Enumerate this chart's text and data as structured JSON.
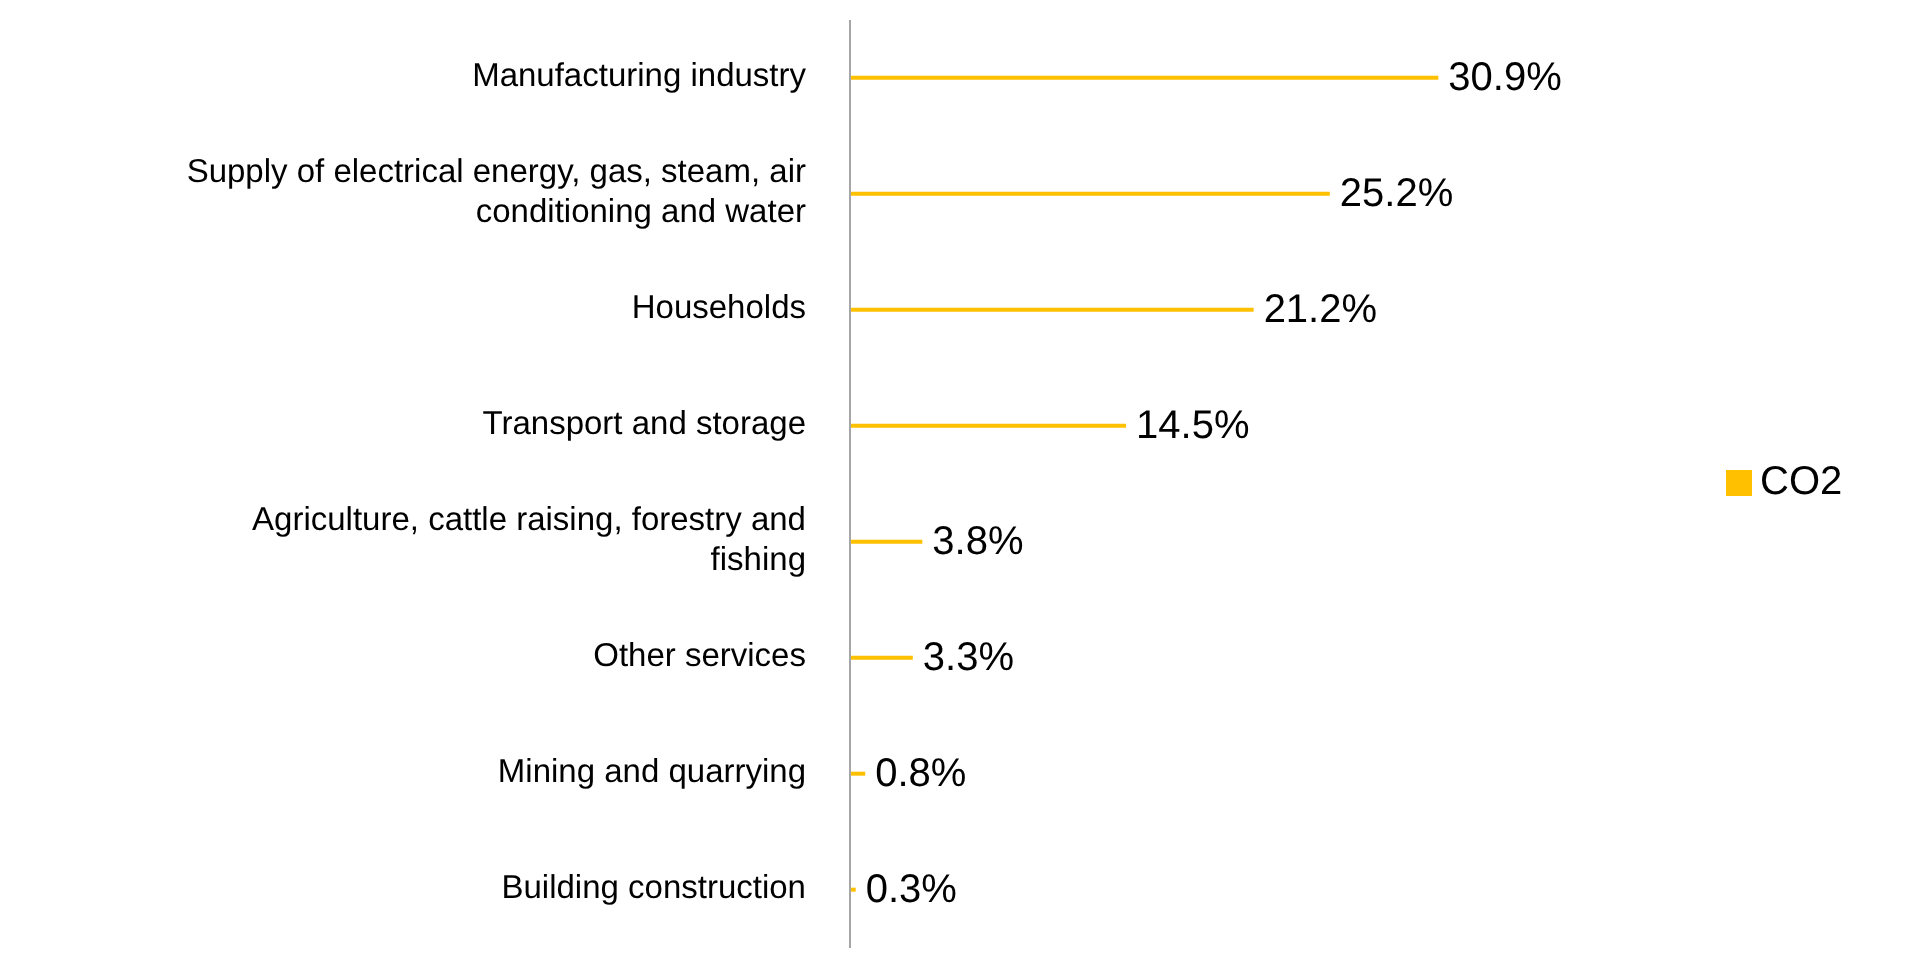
{
  "chart_data": {
    "type": "bar",
    "orientation": "horizontal",
    "categories": [
      "Manufacturing industry",
      "Supply of electrical energy, gas, steam, air conditioning and water",
      "Households",
      "Transport and storage",
      "Agriculture, cattle raising, forestry and fishing",
      "Other services",
      "Mining and quarrying",
      "Building construction"
    ],
    "series": [
      {
        "name": "CO2",
        "color": "#ffc000",
        "values": [
          30.9,
          25.2,
          21.2,
          14.5,
          3.8,
          3.3,
          0.8,
          0.3
        ],
        "value_labels": [
          "30.9%",
          "25.2%",
          "21.2%",
          "14.5%",
          "3.8%",
          "3.3%",
          "0.8%",
          "0.3%"
        ]
      }
    ],
    "legend": "right",
    "grid": false
  }
}
